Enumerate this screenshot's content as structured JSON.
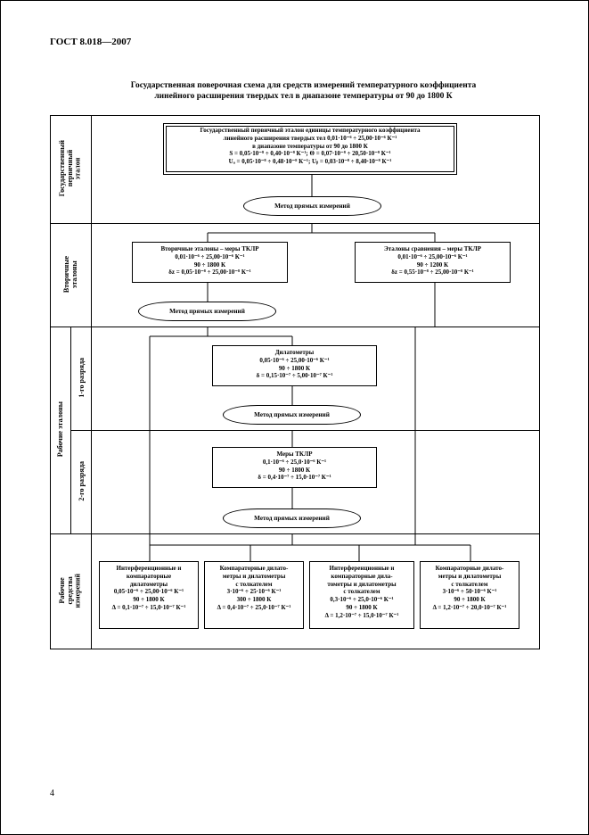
{
  "header": "ГОСТ  8.018—2007",
  "title_l1": "Государственная поверочная схема для средств измерений температурного коэффициента",
  "title_l2": "линейного расширения твердых тел в диапазоне температуры от 90 до 1800 К",
  "page_number": "4",
  "labels": {
    "r1": "Государственный\nпервичный\nэталон",
    "r2": "Вторичные\nэталоны",
    "r34_outer": "Рабочие эталоны",
    "r3": "1-го разряда",
    "r4": "2-го разряда",
    "r5": "Рабочие\nсредства\nизмерений"
  },
  "nodes": {
    "top_box": "Государственный первичный эталон единицы температурного коэффициента\nлинейного расширения твердых тел 0,01·10⁻⁶ ÷ 25,00·10⁻⁶ К⁻¹\nв диапазоне температуры от 90 до 1800 К\nS = 0,05·10⁻⁸ ÷ 0,40·10⁻⁸ К⁻¹; Θ = 0,07·10⁻⁸ ÷ 20,50·10⁻⁸ К⁻¹\nUₐ = 0,05·10⁻⁸ ÷ 0,48·10⁻⁸ К⁻¹; Uᵦ = 0,03·10⁻⁸ ÷ 8,40·10⁻⁸ К⁻¹",
    "method": "Метод прямых измерений",
    "sec_left": "Вторичные эталоны – меры ТКЛР\n0,01·10⁻⁶ ÷ 25,00·10⁻⁶ К⁻¹\n90 ÷ 1800 К\nδz = 0,05·10⁻⁸ ÷ 25,00·10⁻⁸ К⁻¹",
    "sec_right": "Эталоны сравнения – меры ТКЛР\n0,01·10⁻⁶ ÷ 25,00·10⁻⁶ К⁻¹\n90 ÷ 1200 К\nδz = 0,55·10⁻⁸ ÷ 25,00·10⁻⁸ К⁻¹",
    "r3_box": "Дилатометры\n0,05·10⁻⁶ ÷ 25,00·10⁻⁶ К⁻¹\n90 ÷ 1800 К\nδ = 0,15·10⁻⁷ ÷ 5,00·10⁻⁷ К⁻¹",
    "r4_box": "Меры ТКЛР\n0,1·10⁻⁶ ÷ 25,0·10⁻⁶ К⁻¹\n90 ÷ 1800 К\nδ = 0,4·10⁻⁷ ÷ 15,0·10⁻⁷ К⁻¹",
    "r5_b1": "Интерференционные и\nкомпараторные\nдилатометры\n0,05·10⁻⁶ ÷ 25,00·10⁻⁶ К⁻¹\n90 ÷ 1800 К\nΔ = 0,1·10⁻⁷ ÷ 15,0·10⁻⁷ К⁻¹",
    "r5_b2": "Компараторные дилато-\nметры и дилатометры\nс толкателем\n3·10⁻⁶ ÷ 25·10⁻⁶ К⁻¹\n300 ÷ 1800 К\nΔ = 0,4·10⁻⁷ ÷ 25,0·10⁻⁷ К⁻¹",
    "r5_b3": "Интерференционные и\nкомпараторные дила-\nтометры и дилатометры\nс толкателем\n0,3·10⁻⁶ ÷ 25,0·10⁻⁶ К⁻¹\n90 ÷ 1800 К\nΔ = 1,2·10⁻⁷ ÷ 15,0·10⁻⁷ К⁻¹",
    "r5_b4": "Компараторные дилато-\nметры и дилатометры\nс толкателем\n3·10⁻⁶ ÷ 50·10⁻⁶ К⁻¹\n90 ÷ 1800 К\nΔ = 1,2·10⁻⁷ ÷ 20,0·10⁻⁷ К⁻¹"
  }
}
